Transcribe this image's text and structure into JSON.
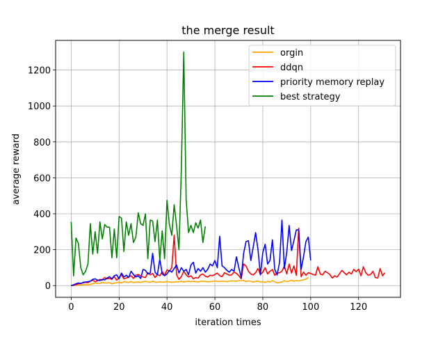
{
  "chart_data": {
    "type": "line",
    "title": "the merge result",
    "xlabel": "iteration times",
    "ylabel": "average reward",
    "xlim": [
      -6.5,
      137.5
    ],
    "ylim": [
      -65,
      1365
    ],
    "xticks": [
      0,
      20,
      40,
      60,
      80,
      100,
      120
    ],
    "yticks": [
      0,
      200,
      400,
      600,
      800,
      1000,
      1200
    ],
    "grid": true,
    "legend_position": "top-right",
    "series": [
      {
        "name": "orgin",
        "color": "#ffa500",
        "values": [
          0,
          2,
          3,
          2,
          3,
          5,
          6,
          4,
          8,
          10,
          15,
          12,
          13,
          18,
          15,
          14,
          17,
          10,
          14,
          16,
          18,
          15,
          22,
          20,
          18,
          23,
          17,
          19,
          20,
          18,
          22,
          24,
          21,
          18,
          25,
          20,
          18,
          22,
          19,
          20,
          23,
          21,
          18,
          20,
          22,
          21,
          24,
          20,
          23,
          25,
          22,
          24,
          22,
          20,
          24,
          25,
          23,
          21,
          22,
          24,
          26,
          24,
          23,
          25,
          24,
          22,
          25,
          27,
          26,
          25,
          27,
          28,
          29,
          22,
          27,
          24,
          20,
          23,
          26,
          20,
          22,
          18,
          24,
          20,
          28,
          22,
          15,
          18,
          20,
          28,
          22,
          25,
          30,
          24,
          28,
          26,
          30,
          32,
          36,
          45
        ]
      },
      {
        "name": "ddqn",
        "color": "#ff0000",
        "values": [
          0,
          2,
          5,
          10,
          12,
          15,
          18,
          16,
          25,
          30,
          22,
          28,
          35,
          30,
          45,
          38,
          40,
          35,
          50,
          30,
          45,
          60,
          38,
          42,
          48,
          55,
          40,
          58,
          62,
          55,
          48,
          45,
          72,
          60,
          68,
          45,
          62,
          55,
          78,
          58,
          88,
          80,
          100,
          280,
          60,
          35,
          50,
          80,
          60,
          48,
          55,
          38,
          45,
          42,
          60,
          65,
          52,
          48,
          58,
          55,
          62,
          70,
          55,
          50,
          72,
          65,
          58,
          60,
          75,
          68,
          55,
          38,
          120,
          110,
          80,
          65,
          60,
          72,
          95,
          62,
          75,
          100,
          65,
          80,
          90,
          58,
          70,
          72,
          80,
          110,
          65,
          120,
          70,
          110,
          58,
          320,
          50,
          75,
          58,
          72,
          68,
          62,
          58,
          105,
          65,
          60,
          80,
          72,
          62,
          42,
          55,
          48,
          65,
          85,
          72,
          60,
          75,
          65,
          90,
          78,
          92,
          55,
          105,
          72,
          58,
          62,
          80,
          45,
          42,
          95,
          55,
          72
        ]
      },
      {
        "name": "priority memory replay",
        "color": "#0000ff",
        "values": [
          0,
          5,
          10,
          15,
          12,
          18,
          20,
          22,
          25,
          35,
          38,
          30,
          28,
          35,
          32,
          42,
          50,
          38,
          55,
          60,
          38,
          70,
          48,
          58,
          45,
          80,
          62,
          48,
          55,
          40,
          90,
          85,
          65,
          70,
          180,
          75,
          60,
          150,
          65,
          55,
          65,
          85,
          75,
          95,
          115,
          70,
          100,
          80,
          90,
          60,
          115,
          130,
          70,
          95,
          80,
          100,
          75,
          90,
          120,
          110,
          140,
          100,
          275,
          110,
          100,
          85,
          75,
          90,
          80,
          160,
          100,
          45,
          180,
          245,
          250,
          140,
          215,
          295,
          200,
          60,
          185,
          230,
          120,
          140,
          255,
          90,
          60,
          130,
          365,
          95,
          185,
          335,
          195,
          250,
          310,
          310,
          90,
          160,
          245,
          270,
          140
        ]
      },
      {
        "name": "best strategy",
        "color": "#008000",
        "values": [
          355,
          55,
          265,
          235,
          100,
          60,
          80,
          120,
          345,
          175,
          300,
          180,
          355,
          260,
          340,
          325,
          325,
          155,
          315,
          155,
          385,
          375,
          190,
          355,
          280,
          345,
          240,
          270,
          405,
          345,
          335,
          400,
          150,
          365,
          360,
          245,
          365,
          140,
          305,
          150,
          475,
          340,
          280,
          450,
          335,
          200,
          650,
          1300,
          480,
          295,
          335,
          295,
          350,
          320,
          365,
          240,
          330
        ]
      }
    ]
  }
}
